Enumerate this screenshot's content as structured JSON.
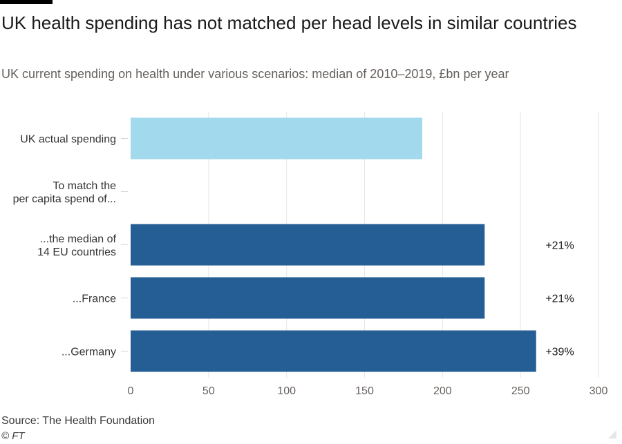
{
  "title": "UK health spending has not matched per head levels in similar countries",
  "subtitle": "UK current spending on health under various scenarios: median of 2010–2019, £bn per year",
  "source": "Source: The Health Foundation",
  "credit": "© FT",
  "colors": {
    "uk": "#a2d9ec",
    "scenario": "#245e94",
    "grid": "#e8e6e3",
    "tick_text": "#66605c",
    "label_text": "#333333"
  },
  "chart_data": {
    "type": "bar",
    "orientation": "horizontal",
    "categories": [
      [
        "UK actual spending"
      ],
      [
        "To match the",
        "per capita spend of..."
      ],
      [
        "...the median of",
        "14 EU countries"
      ],
      [
        "...France"
      ],
      [
        "...Germany"
      ]
    ],
    "values": [
      187,
      null,
      227,
      227,
      260
    ],
    "bar_color_keys": [
      "uk",
      null,
      "scenario",
      "scenario",
      "scenario"
    ],
    "annotations": [
      "",
      "",
      "+21%",
      "+21%",
      "+39%"
    ],
    "xlim": [
      0,
      300
    ],
    "xticks": [
      0,
      50,
      100,
      150,
      200,
      250,
      300
    ],
    "grid": true,
    "xlabel": "",
    "ylabel": ""
  }
}
